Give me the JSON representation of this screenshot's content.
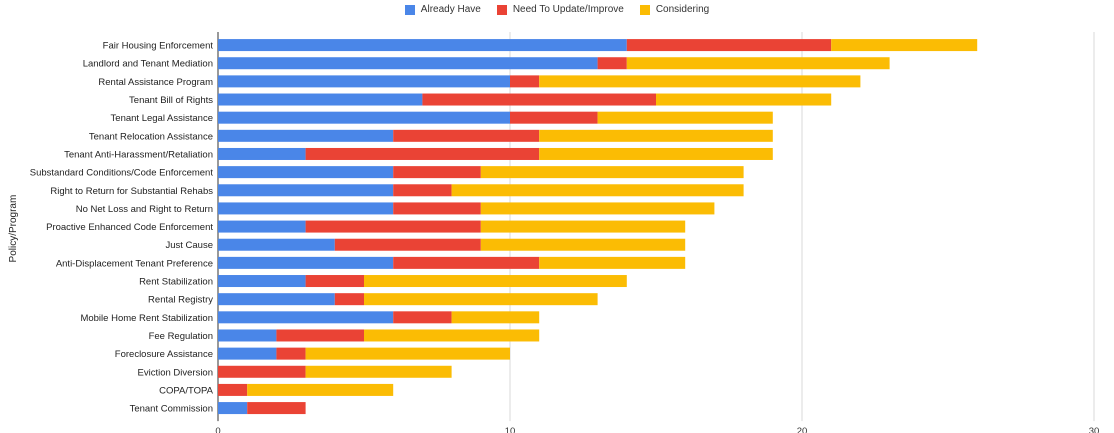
{
  "chart_data": {
    "type": "bar",
    "orientation": "horizontal",
    "stacked": true,
    "ylabel": "Policy/Program",
    "xlim": [
      0,
      30
    ],
    "xticks": [
      "0",
      "10",
      "20",
      "30"
    ],
    "grid": true,
    "legend_position": "top",
    "categories": [
      "Fair Housing Enforcement",
      "Landlord and Tenant Mediation",
      "Rental Assistance Program",
      "Tenant Bill of Rights",
      "Tenant Legal Assistance",
      "Tenant Relocation Assistance",
      "Tenant Anti-Harassment/Retaliation",
      "Substandard Conditions/Code Enforcement",
      "Right to Return for Substantial Rehabs",
      "No Net Loss and Right to Return",
      "Proactive Enhanced Code Enforcement",
      "Just Cause",
      "Anti-Displacement Tenant Preference",
      "Rent Stabilization",
      "Rental Registry",
      "Mobile Home Rent Stabilization",
      "Fee Regulation",
      "Foreclosure Assistance",
      "Eviction Diversion",
      "COPA/TOPA",
      "Tenant Commission"
    ],
    "series": [
      {
        "name": "Already Have",
        "color": "#4a86e8",
        "values": [
          14,
          13,
          10,
          7,
          10,
          6,
          3,
          6,
          6,
          6,
          3,
          4,
          6,
          3,
          4,
          6,
          2,
          2,
          0,
          0,
          1
        ]
      },
      {
        "name": "Need To Update/Improve",
        "color": "#ea4335",
        "values": [
          7,
          1,
          1,
          8,
          3,
          5,
          8,
          3,
          2,
          3,
          6,
          5,
          5,
          2,
          1,
          2,
          3,
          1,
          3,
          1,
          2
        ]
      },
      {
        "name": "Considering",
        "color": "#fbbc04",
        "values": [
          5,
          9,
          11,
          6,
          6,
          8,
          8,
          9,
          10,
          8,
          7,
          7,
          5,
          9,
          8,
          3,
          6,
          7,
          5,
          5,
          0
        ]
      }
    ]
  }
}
